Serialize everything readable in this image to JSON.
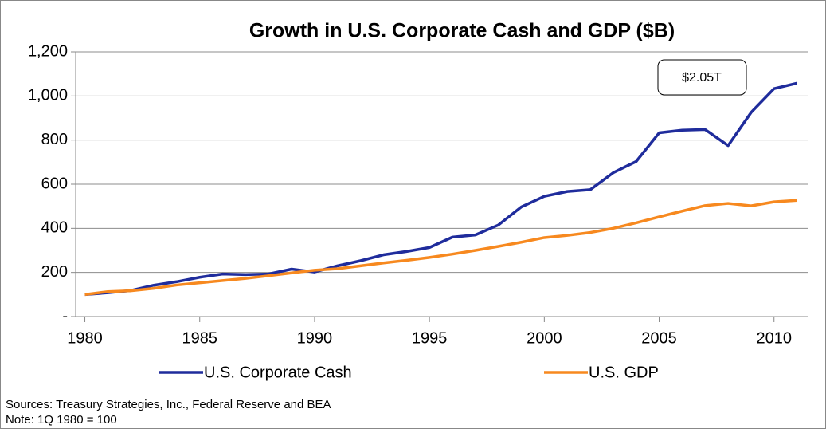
{
  "chart_data": {
    "type": "line",
    "title": "Growth in U.S. Corporate Cash and GDP ($B)",
    "x": [
      1980,
      1981,
      1982,
      1983,
      1984,
      1985,
      1986,
      1987,
      1988,
      1989,
      1990,
      1991,
      1992,
      1993,
      1994,
      1995,
      1996,
      1997,
      1998,
      1999,
      2000,
      2001,
      2002,
      2003,
      2004,
      2005,
      2006,
      2007,
      2008,
      2009,
      2010,
      2011
    ],
    "series": [
      {
        "name": "U.S. Corporate Cash",
        "color": "#1f2c9c",
        "values": [
          100,
          108,
          118,
          142,
          158,
          178,
          193,
          190,
          193,
          215,
          202,
          230,
          253,
          280,
          295,
          313,
          360,
          370,
          415,
          497,
          545,
          567,
          575,
          652,
          703,
          833,
          845,
          848,
          775,
          925,
          1033,
          1058
        ]
      },
      {
        "name": "U.S. GDP",
        "color": "#f7891f",
        "values": [
          100,
          113,
          117,
          128,
          143,
          153,
          163,
          173,
          185,
          198,
          210,
          217,
          230,
          243,
          255,
          268,
          283,
          300,
          318,
          337,
          358,
          368,
          381,
          400,
          425,
          452,
          478,
          503,
          513,
          502,
          520,
          527
        ]
      }
    ],
    "xlim": [
      1979.6,
      2011.5
    ],
    "xticks": [
      1980,
      1985,
      1990,
      1995,
      2000,
      2005,
      2010
    ],
    "ylim": [
      0,
      1200
    ],
    "yticks": [
      {
        "value": 0,
        "label": "-"
      },
      200,
      400,
      600,
      800,
      {
        "value": 1000,
        "label": "1,000"
      },
      {
        "value": 1200,
        "label": "1,200"
      }
    ],
    "grid": true,
    "legend": "bottom",
    "annotations": [
      "$2.05T"
    ],
    "sources": "Sources: Treasury Strategies, Inc.,  Federal Reserve and BEA",
    "note": "Note: 1Q 1980 = 100"
  }
}
